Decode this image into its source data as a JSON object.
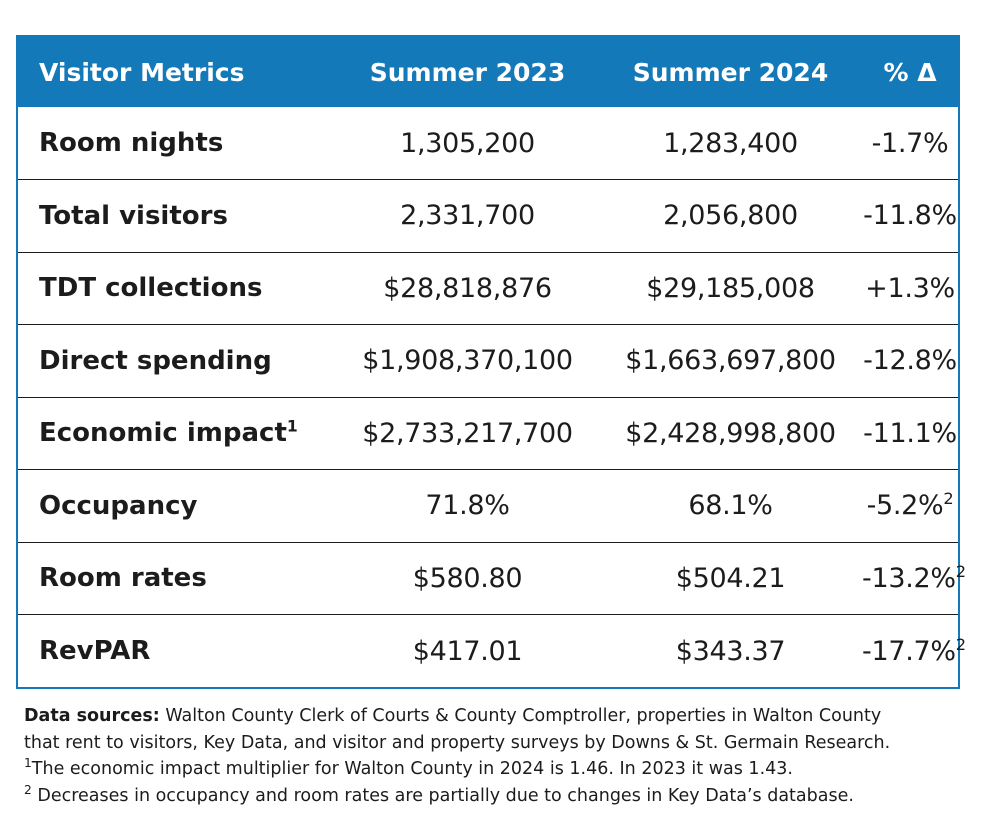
{
  "table": {
    "headers": [
      "Visitor Metrics",
      "Summer 2023",
      "Summer 2024",
      "% Δ"
    ],
    "rows": [
      {
        "metric": "Room nights",
        "metric_sup": "",
        "summer_2023": "1,305,200",
        "summer_2024": "1,283,400",
        "change": "-1.7%",
        "change_sup": ""
      },
      {
        "metric": "Total visitors",
        "metric_sup": "",
        "summer_2023": "2,331,700",
        "summer_2024": "2,056,800",
        "change": "-11.8%",
        "change_sup": ""
      },
      {
        "metric": "TDT collections",
        "metric_sup": "",
        "summer_2023": "$28,818,876",
        "summer_2024": "$29,185,008",
        "change": "+1.3%",
        "change_sup": ""
      },
      {
        "metric": "Direct spending",
        "metric_sup": "",
        "summer_2023": "$1,908,370,100",
        "summer_2024": "$1,663,697,800",
        "change": "-12.8%",
        "change_sup": ""
      },
      {
        "metric": "Economic impact",
        "metric_sup": "1",
        "summer_2023": "$2,733,217,700",
        "summer_2024": "$2,428,998,800",
        "change": "-11.1%",
        "change_sup": ""
      },
      {
        "metric": "Occupancy",
        "metric_sup": "",
        "summer_2023": "71.8%",
        "summer_2024": "68.1%",
        "change": "-5.2%",
        "change_sup": "2"
      },
      {
        "metric": "Room rates",
        "metric_sup": "",
        "summer_2023": "$580.80",
        "summer_2024": "$504.21",
        "change": "-13.2%",
        "change_sup": "2"
      },
      {
        "metric": "RevPAR",
        "metric_sup": "",
        "summer_2023": "$417.01",
        "summer_2024": "$343.37",
        "change": "-17.7%",
        "change_sup": "2"
      }
    ]
  },
  "notes": {
    "sources_label": "Data sources:",
    "sources_line1": " Walton County Clerk of Courts & County Comptroller, properties in Walton County",
    "sources_line2": "that rent to visitors, Key Data, and visitor and property surveys by Downs & St. Germain Research.",
    "footnote1_marker": "1",
    "footnote1_text": "The economic impact multiplier for Walton County in 2024 is 1.46. In 2023 it was 1.43.",
    "footnote2_marker": "2",
    "footnote2_text": " Decreases in occupancy and room rates are partially due to changes in Key Data’s database."
  },
  "colors": {
    "header_bg": "#1479b8",
    "header_text": "#ffffff",
    "body_text": "#1c1c1c"
  }
}
